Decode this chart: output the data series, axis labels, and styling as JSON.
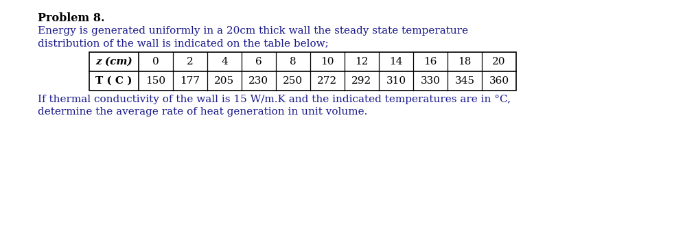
{
  "title": "Problem 8.",
  "paragraph1": "Energy is generated uniformly in a 20cm thick wall the steady state temperature",
  "paragraph2": "distribution of the wall is indicated on the table below;",
  "paragraph3": "If thermal conductivity of the wall is 15 W/m.K and the indicated temperatures are in °C,",
  "paragraph4": "determine the average rate of heat generation in unit volume.",
  "row1_header": "z (cm)",
  "row2_header": "T ( C )",
  "z_values": [
    "0",
    "2",
    "4",
    "6",
    "8",
    "10",
    "12",
    "14",
    "16",
    "18",
    "20"
  ],
  "T_values": [
    "150",
    "177",
    "205",
    "230",
    "250",
    "272",
    "292",
    "310",
    "330",
    "345",
    "360"
  ],
  "bg_color": "#ffffff",
  "text_color": "#1a1a8c",
  "title_color": "#000000",
  "title_fontsize": 11.5,
  "body_fontsize": 11,
  "table_fontsize": 11
}
